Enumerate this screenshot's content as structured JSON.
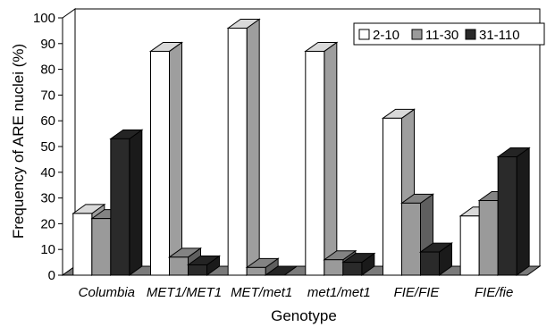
{
  "chart_data": {
    "type": "bar",
    "style": "3d-clustered",
    "categories": [
      "Columbia",
      "MET1/MET1",
      "MET/met1",
      "met1/met1",
      "FIE/FIE",
      "FIE/fie"
    ],
    "series": [
      {
        "name": "2-10",
        "values": [
          24,
          87,
          96,
          87,
          61,
          23
        ],
        "color": "#ffffff"
      },
      {
        "name": "11-30",
        "values": [
          22,
          7,
          3,
          6,
          28,
          29
        ],
        "color": "#9a9a9a"
      },
      {
        "name": "31-110",
        "values": [
          53,
          4,
          0,
          5,
          9,
          46
        ],
        "color": "#2a2a2a"
      }
    ],
    "xlabel": "Genotype",
    "ylabel": "Frequency of ARE nuclei (%)",
    "ylim": [
      0,
      100
    ],
    "yticks": [
      0,
      10,
      20,
      30,
      40,
      50,
      60,
      70,
      80,
      90,
      100
    ],
    "grid": false,
    "legend_position": "top-right"
  }
}
